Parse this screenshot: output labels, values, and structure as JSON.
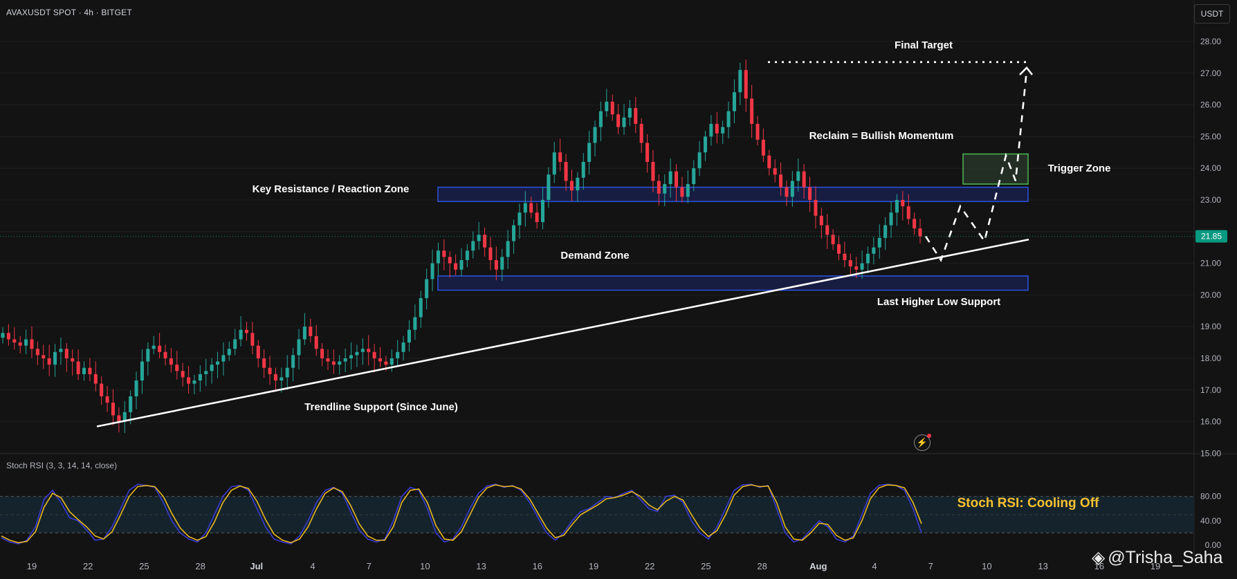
{
  "header": {
    "symbol_line": "AVAXUSDT SPOT · 4h · BITGET",
    "currency_button": "USDT"
  },
  "indicator": {
    "label": "Stoch RSI (3, 3, 14, 14, close)",
    "y_ticks": [
      "80.00",
      "40.00",
      "0.00"
    ]
  },
  "watermark": {
    "icon": "tradingview-diamond-icon",
    "text": "@Trisha_Saha"
  },
  "colors": {
    "background": "#131313",
    "up_candle": "#26a69a",
    "down_candle": "#f23645",
    "zone_border": "#2a51d6",
    "zone_fill": "#1a2252",
    "trigger_border": "#4caf50",
    "stoch_k": "#3b3bd6",
    "stoch_d": "#e8b820",
    "rsi_band": "#15242c",
    "price_badge": "#089981",
    "rsi_callout": "#f5c131"
  },
  "chart_data": [
    {
      "type": "candlestick",
      "title": "",
      "y_axis": {
        "ticks": [
          "28.00",
          "27.00",
          "26.00",
          "25.00",
          "24.00",
          "23.00",
          "22.00",
          "21.00",
          "20.00",
          "19.00",
          "18.00",
          "17.00",
          "16.00",
          "15.00"
        ],
        "ylim": [
          15,
          28.5
        ],
        "position": "right"
      },
      "x_axis": {
        "ticks": [
          "19",
          "22",
          "25",
          "28",
          "Jul",
          "4",
          "7",
          "10",
          "13",
          "16",
          "19",
          "22",
          "25",
          "28",
          "Aug",
          "4",
          "7",
          "10",
          "13",
          "16",
          "19"
        ]
      },
      "last_price": "21.85",
      "close_series": [
        18.8,
        18.6,
        18.5,
        18.4,
        18.6,
        18.3,
        18.1,
        18.0,
        17.8,
        18.2,
        18.3,
        18.0,
        17.9,
        17.5,
        17.7,
        17.5,
        17.2,
        16.8,
        16.6,
        16.2,
        16.0,
        16.3,
        16.8,
        17.3,
        17.9,
        18.3,
        18.4,
        18.2,
        18.0,
        17.8,
        17.6,
        17.4,
        17.2,
        17.3,
        17.5,
        17.6,
        17.8,
        17.9,
        18.1,
        18.3,
        18.6,
        18.9,
        18.8,
        18.4,
        18.0,
        17.7,
        17.5,
        17.3,
        17.4,
        17.7,
        18.1,
        18.6,
        19.0,
        18.7,
        18.3,
        18.0,
        17.9,
        17.8,
        17.9,
        18.0,
        18.1,
        18.2,
        18.3,
        18.2,
        18.0,
        17.9,
        17.8,
        18.0,
        18.2,
        18.5,
        18.9,
        19.3,
        19.9,
        20.5,
        21.0,
        21.4,
        21.2,
        21.0,
        20.8,
        21.1,
        21.4,
        21.7,
        21.9,
        21.5,
        21.1,
        20.8,
        21.2,
        21.7,
        22.2,
        22.6,
        22.9,
        22.6,
        22.3,
        23.0,
        23.8,
        24.5,
        24.2,
        23.6,
        23.3,
        23.7,
        24.2,
        24.8,
        25.3,
        25.8,
        26.1,
        25.7,
        25.3,
        25.6,
        25.9,
        25.4,
        24.8,
        24.2,
        23.6,
        23.2,
        23.5,
        23.9,
        23.4,
        23.1,
        23.5,
        24.0,
        24.5,
        25.0,
        25.4,
        25.1,
        25.3,
        25.8,
        26.4,
        27.1,
        26.2,
        25.4,
        24.9,
        24.4,
        24.0,
        23.8,
        23.4,
        23.1,
        23.6,
        23.9,
        23.4,
        23.0,
        22.5,
        22.2,
        21.9,
        21.6,
        21.3,
        21.1,
        20.9,
        20.8,
        21.0,
        21.3,
        21.5,
        21.8,
        22.2,
        22.6,
        23.0,
        22.8,
        22.4,
        22.1,
        21.85
      ],
      "annotations": [
        {
          "id": "final_target",
          "label": "Final Target",
          "kind": "dotted-horizontal",
          "price": 27.35
        },
        {
          "id": "key_resistance",
          "label": "Key Resistance / Reaction Zone",
          "kind": "box",
          "price_range": [
            22.95,
            23.4
          ]
        },
        {
          "id": "demand_zone",
          "label": "Demand Zone",
          "kind": "box",
          "price_range": [
            20.15,
            20.6
          ]
        },
        {
          "id": "trigger_zone",
          "label": "Trigger Zone",
          "kind": "box",
          "price_range": [
            23.5,
            24.45
          ]
        },
        {
          "id": "reclaim_note",
          "label": "Reclaim = Bullish Momentum",
          "kind": "text"
        },
        {
          "id": "last_hl_note",
          "label": "Last Higher Low Support",
          "kind": "text"
        },
        {
          "id": "trendline_note",
          "label": "Trendline Support (Since June)",
          "kind": "text"
        }
      ],
      "trendline": {
        "start_price": 15.85,
        "end_price": 21.75
      },
      "projection_path_prices": [
        21.85,
        21.1,
        22.8,
        21.7,
        24.4,
        23.6,
        27.1
      ]
    },
    {
      "type": "line",
      "title": "Stoch RSI (3, 3, 14, 14, close)",
      "ylim": [
        0,
        100
      ],
      "bands": [
        20,
        80
      ],
      "callout": "Stoch RSI: Cooling Off",
      "series": [
        {
          "name": "%K",
          "values": [
            12,
            5,
            2,
            8,
            30,
            75,
            90,
            70,
            45,
            40,
            25,
            8,
            10,
            30,
            60,
            90,
            100,
            98,
            95,
            70,
            40,
            20,
            10,
            5,
            20,
            50,
            80,
            96,
            98,
            90,
            60,
            30,
            10,
            5,
            2,
            15,
            40,
            70,
            90,
            95,
            85,
            55,
            25,
            10,
            5,
            10,
            40,
            80,
            95,
            90,
            60,
            20,
            5,
            10,
            30,
            60,
            85,
            97,
            100,
            95,
            98,
            90,
            70,
            45,
            20,
            8,
            20,
            40,
            55,
            60,
            70,
            80,
            78,
            85,
            90,
            75,
            60,
            55,
            80,
            82,
            70,
            40,
            20,
            10,
            30,
            60,
            90,
            99,
            100,
            95,
            98,
            60,
            20,
            5,
            10,
            25,
            40,
            30,
            10,
            5,
            15,
            50,
            85,
            98,
            100,
            98,
            90,
            60,
            20
          ]
        },
        {
          "name": "%D",
          "values": [
            15,
            8,
            4,
            6,
            22,
            62,
            85,
            78,
            55,
            42,
            30,
            15,
            10,
            22,
            50,
            80,
            96,
            98,
            96,
            80,
            52,
            28,
            14,
            8,
            14,
            38,
            70,
            90,
            97,
            93,
            72,
            42,
            18,
            8,
            4,
            10,
            30,
            60,
            85,
            94,
            88,
            65,
            35,
            15,
            8,
            8,
            30,
            70,
            90,
            92,
            70,
            32,
            10,
            8,
            22,
            50,
            78,
            94,
            99,
            96,
            97,
            92,
            76,
            52,
            28,
            12,
            16,
            34,
            50,
            58,
            66,
            76,
            78,
            82,
            88,
            80,
            66,
            58,
            72,
            80,
            74,
            50,
            28,
            14,
            24,
            50,
            82,
            96,
            99,
            96,
            97,
            70,
            30,
            10,
            8,
            20,
            36,
            34,
            16,
            8,
            12,
            40,
            76,
            94,
            99,
            98,
            94,
            70,
            35
          ]
        }
      ]
    }
  ]
}
